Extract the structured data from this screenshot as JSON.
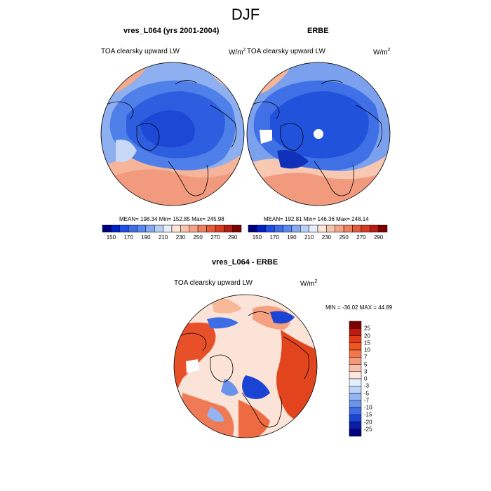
{
  "title": "DJF",
  "panels": [
    {
      "title": "vres_L064 (yrs 2001-2004)",
      "variable": "TOA clearsky upward LW",
      "units_base": "W/m",
      "units_exp": "2",
      "stats": "MEAN= 198.34  Min= 152.85  Max= 245.98"
    },
    {
      "title": "ERBE",
      "variable": "TOA clearsky upward LW",
      "units_base": "W/m",
      "units_exp": "2",
      "stats": "MEAN= 192.81  Min= 146.36  Max= 248.14"
    },
    {
      "title": "vres_L064 - ERBE",
      "variable": "TOA clearsky upward LW",
      "units_base": "W/m",
      "units_exp": "2",
      "stats": "MIN = -36.02 MAX =  44.89"
    }
  ],
  "colorbar_abs": {
    "labels": [
      "150",
      "170",
      "190",
      "210",
      "230",
      "250",
      "270",
      "290"
    ],
    "colors": [
      "#00007f",
      "#0020c8",
      "#1f4fe6",
      "#3d6ee8",
      "#5a8af0",
      "#85aaf2",
      "#b8cff6",
      "#e6eefc",
      "#fde6d9",
      "#f8c4ac",
      "#f2a287",
      "#ec7f5f",
      "#e45c3c",
      "#d63a22",
      "#b81c10",
      "#7f0000"
    ]
  },
  "colorbar_diff": {
    "labels": [
      "25",
      "20",
      "15",
      "10",
      "7",
      "5",
      "3",
      "0",
      "-3",
      "-5",
      "-7",
      "-10",
      "-15",
      "-20",
      "-25"
    ],
    "colors": [
      "#7f0000",
      "#c01a0a",
      "#e23a14",
      "#f0561e",
      "#f5754a",
      "#f8987a",
      "#fbc0a8",
      "#fde8df",
      "#e5eefc",
      "#bcd3f7",
      "#94b4f2",
      "#6a93ec",
      "#3e6de6",
      "#1c44d4",
      "#0a1fa8",
      "#00007f"
    ]
  }
}
